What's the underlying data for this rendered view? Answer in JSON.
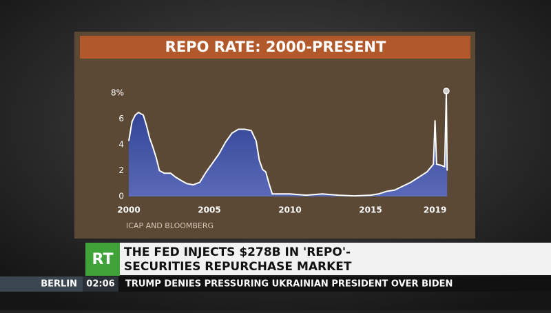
{
  "chart_data": {
    "type": "area",
    "title": "REPO RATE: 2000-PRESENT",
    "source": "ICAP AND BLOOMBERG",
    "x": [
      2000.0,
      2000.2,
      2000.4,
      2000.6,
      2000.9,
      2001.1,
      2001.3,
      2001.5,
      2001.7,
      2001.9,
      2002.2,
      2002.6,
      2002.9,
      2003.3,
      2003.6,
      2004.0,
      2004.4,
      2004.8,
      2005.2,
      2005.6,
      2006.0,
      2006.4,
      2006.8,
      2007.2,
      2007.6,
      2007.9,
      2008.1,
      2008.3,
      2008.5,
      2008.7,
      2008.9,
      2009.3,
      2010.0,
      2011.0,
      2012.0,
      2013.0,
      2014.0,
      2015.0,
      2015.5,
      2016.0,
      2016.5,
      2017.0,
      2017.5,
      2018.0,
      2018.5,
      2018.9,
      2019.0,
      2019.1,
      2019.4,
      2019.6,
      2019.7,
      2019.75
    ],
    "series": [
      {
        "color": "#2b3c8e",
        "values": [
          4.3,
          5.8,
          6.3,
          6.5,
          6.3,
          5.5,
          4.5,
          3.8,
          3.0,
          2.0,
          1.8,
          1.8,
          1.5,
          1.2,
          1.0,
          0.9,
          1.1,
          1.9,
          2.6,
          3.3,
          4.2,
          4.9,
          5.2,
          5.2,
          5.1,
          4.3,
          2.8,
          2.1,
          1.9,
          1.0,
          0.2,
          0.2,
          0.2,
          0.1,
          0.2,
          0.1,
          0.05,
          0.1,
          0.2,
          0.4,
          0.5,
          0.8,
          1.1,
          1.5,
          1.9,
          2.5,
          5.9,
          2.5,
          2.4,
          2.3,
          8.0,
          2.0
        ]
      }
    ],
    "xlim": [
      2000,
      2020
    ],
    "xticks": [
      2000,
      2005,
      2010,
      2015,
      2019
    ],
    "ylim": [
      0,
      8
    ],
    "yticks": [
      0,
      2,
      4,
      6,
      {
        "value": 8,
        "label": "8%"
      }
    ]
  },
  "overlay": {
    "logo": "RT",
    "headline": [
      "THE FED INJECTS $278B IN 'REPO'-",
      "SECURITIES REPURCHASE MARKET"
    ],
    "city": "BERLIN",
    "time": "02:06",
    "ticker": "TRUMP DENIES PRESSURING UKRAINIAN PRESIDENT OVER BIDEN"
  }
}
